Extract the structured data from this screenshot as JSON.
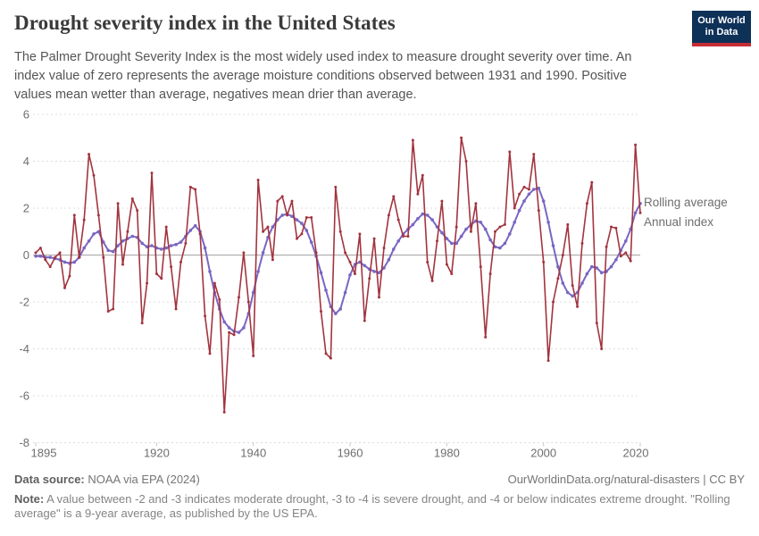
{
  "header": {
    "title": "Drought severity index in the United States",
    "subtitle": "The Palmer Drought Severity Index is the most widely used index to measure drought severity over time. An index value of zero represents the average moisture conditions observed between 1931 and 1990. Positive values mean wetter than average, negatives mean drier than average.",
    "logo": {
      "line1": "Our World",
      "line2": "in Data",
      "bg_color": "#0e3158",
      "bar_color": "#c62d33"
    }
  },
  "chart_data": {
    "type": "line",
    "title": "Drought severity index in the United States",
    "xlabel": "",
    "ylabel": "",
    "ylim": [
      -8,
      6
    ],
    "yticks": [
      6,
      4,
      2,
      0,
      -2,
      -4,
      -6,
      -8
    ],
    "xticks": [
      1895,
      1920,
      1940,
      1960,
      1980,
      2000,
      2020
    ],
    "grid": "horizontal-dashed",
    "zero_line": true,
    "legend_position": "right-of-line-end",
    "years": {
      "start": 1895,
      "end": 2020,
      "step": 1
    },
    "series": [
      {
        "name": "Rolling average",
        "color": "#7a66c2",
        "values": [
          -0.05,
          -0.05,
          -0.1,
          -0.1,
          -0.15,
          -0.2,
          -0.3,
          -0.35,
          -0.3,
          -0.1,
          0.3,
          0.6,
          0.9,
          1.0,
          0.55,
          0.2,
          0.15,
          0.4,
          0.6,
          0.7,
          0.8,
          0.75,
          0.5,
          0.35,
          0.4,
          0.3,
          0.25,
          0.3,
          0.4,
          0.45,
          0.55,
          0.8,
          1.05,
          1.25,
          1.0,
          0.3,
          -0.7,
          -1.6,
          -2.3,
          -2.85,
          -3.1,
          -3.25,
          -3.3,
          -3.1,
          -2.5,
          -1.6,
          -0.7,
          0.1,
          0.75,
          1.2,
          1.5,
          1.7,
          1.75,
          1.65,
          1.5,
          1.35,
          1.05,
          0.55,
          -0.05,
          -0.75,
          -1.5,
          -2.2,
          -2.5,
          -2.3,
          -1.6,
          -0.85,
          -0.4,
          -0.3,
          -0.45,
          -0.6,
          -0.7,
          -0.75,
          -0.55,
          -0.2,
          0.25,
          0.6,
          0.9,
          1.1,
          1.3,
          1.55,
          1.75,
          1.7,
          1.5,
          1.2,
          0.95,
          0.7,
          0.5,
          0.5,
          0.8,
          1.1,
          1.3,
          1.45,
          1.4,
          1.1,
          0.65,
          0.35,
          0.3,
          0.5,
          0.9,
          1.4,
          1.9,
          2.3,
          2.6,
          2.8,
          2.85,
          2.3,
          1.4,
          0.4,
          -0.5,
          -1.2,
          -1.6,
          -1.75,
          -1.6,
          -1.2,
          -0.8,
          -0.5,
          -0.55,
          -0.75,
          -0.7,
          -0.5,
          -0.2,
          0.2,
          0.6,
          1.1,
          1.8,
          2.2
        ]
      },
      {
        "name": "Annual index",
        "color": "#a2343f",
        "values": [
          0.1,
          0.3,
          -0.2,
          -0.5,
          -0.1,
          0.1,
          -1.4,
          -0.9,
          1.7,
          -0.1,
          1.5,
          4.3,
          3.4,
          1.7,
          -0.1,
          -2.4,
          -2.3,
          2.2,
          -0.4,
          1.0,
          2.4,
          1.9,
          -2.9,
          -1.2,
          3.5,
          -0.8,
          -1.0,
          1.2,
          -0.5,
          -2.3,
          -0.3,
          0.5,
          2.9,
          2.8,
          0.9,
          -2.6,
          -4.2,
          -1.2,
          -1.9,
          -6.7,
          -3.3,
          -3.4,
          -1.8,
          0.1,
          -2.0,
          -4.3,
          3.2,
          1.0,
          1.2,
          -0.2,
          2.3,
          2.5,
          1.7,
          2.3,
          0.7,
          0.9,
          1.6,
          1.6,
          0.1,
          -2.4,
          -4.2,
          -4.4,
          2.9,
          1.0,
          0.1,
          -0.3,
          -0.8,
          0.9,
          -2.8,
          -1.0,
          0.7,
          -1.8,
          0.3,
          1.7,
          2.5,
          1.5,
          0.8,
          0.8,
          4.9,
          2.6,
          3.4,
          -0.3,
          -1.1,
          0.6,
          2.3,
          -0.4,
          -0.8,
          1.2,
          5.0,
          4.0,
          1.0,
          2.2,
          -0.5,
          -3.5,
          -0.8,
          1.0,
          1.2,
          1.3,
          4.4,
          2.0,
          2.6,
          2.9,
          2.8,
          4.3,
          1.9,
          -0.3,
          -4.5,
          -2.0,
          -1.0,
          0.0,
          1.3,
          -1.3,
          -2.2,
          0.5,
          2.2,
          3.1,
          -2.9,
          -4.0,
          0.35,
          1.2,
          1.15,
          -0.05,
          0.1,
          -0.25,
          4.7,
          1.8
        ]
      }
    ],
    "colors": {
      "grid": "#dcdcdc",
      "zero_line": "#b1b1b1",
      "tick_text": "#6e6e6e"
    }
  },
  "footer": {
    "source_label": "Data source:",
    "source_text": " NOAA via EPA (2024)",
    "link_text": "OurWorldinData.org/natural-disasters | CC BY",
    "note_label": "Note:",
    "note_text": " A value between -2 and -3 indicates moderate drought, -3 to -4 is severe drought, and -4 or below indicates extreme drought. \"Rolling average\" is a 9-year average, as published by the US EPA."
  }
}
